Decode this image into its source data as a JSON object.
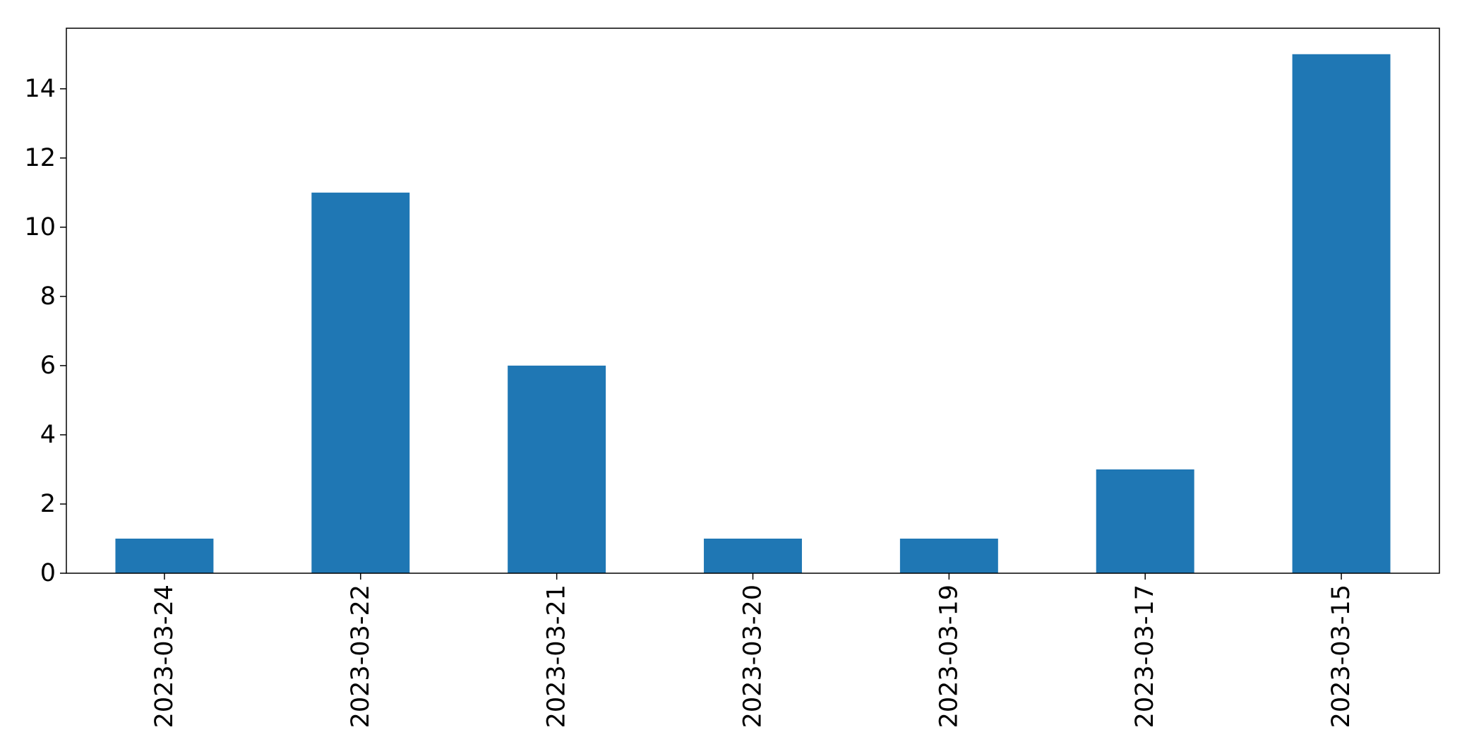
{
  "chart_data": {
    "type": "bar",
    "categories": [
      "2023-03-24",
      "2023-03-22",
      "2023-03-21",
      "2023-03-20",
      "2023-03-19",
      "2023-03-17",
      "2023-03-15"
    ],
    "values": [
      1,
      11,
      6,
      1,
      1,
      3,
      15
    ],
    "y_ticks": [
      0,
      2,
      4,
      6,
      8,
      10,
      12,
      14
    ],
    "ylim": [
      0,
      15.75
    ],
    "title": "",
    "xlabel": "",
    "ylabel": "",
    "bar_color": "#1f77b4",
    "grid": false,
    "legend": "none",
    "x_tick_rotation": "vertical"
  }
}
